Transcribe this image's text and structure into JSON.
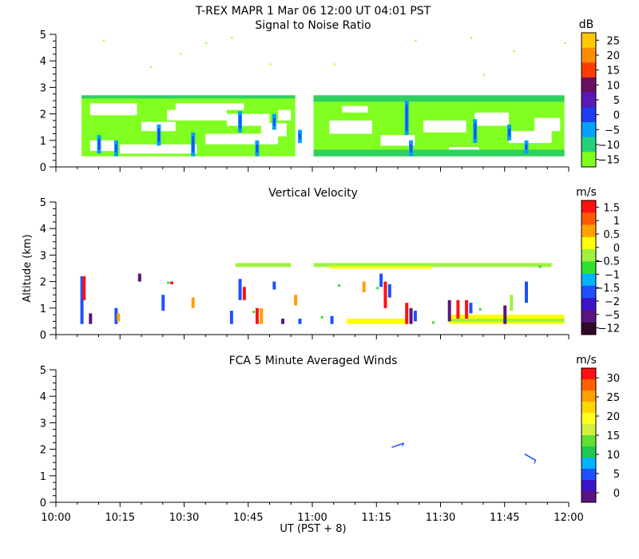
{
  "header": {
    "title": "T-REX   MAPR   1 Mar 06   12:00 UT   04:01   PST"
  },
  "x_axis": {
    "tick_labels": [
      "10:00",
      "10:15",
      "10:30",
      "10:45",
      "11:00",
      "11:15",
      "11:30",
      "11:45",
      "12:00"
    ],
    "xlabel": "UT  (PST + 8)",
    "xlim_minutes": [
      0,
      120
    ]
  },
  "chart_data": [
    {
      "type": "heatmap",
      "title": "Signal to Noise Ratio",
      "ylabel": "",
      "y_tick_labels": [
        "5",
        "4",
        "3",
        "2",
        "1",
        "0"
      ],
      "ylim_km": [
        0,
        5
      ],
      "colorbar": {
        "unit": "dB",
        "labels": [
          "25",
          "20",
          "15",
          "10",
          "5",
          "0",
          "−5",
          "−10",
          "−15"
        ],
        "colors": [
          "#ffc800",
          "#ff8c00",
          "#ff3c00",
          "#6a1060",
          "#5a18b4",
          "#1e3cf0",
          "#00a0ff",
          "#22d27a",
          "#80ff20"
        ]
      },
      "data_gap_minutes": [
        56,
        60
      ],
      "echo_layer_km": [
        0.4,
        2.7
      ]
    },
    {
      "type": "heatmap",
      "title": "Vertical Velocity",
      "ylabel": "Altitude  (km)",
      "y_tick_labels": [
        "5",
        "4",
        "3",
        "2",
        "1",
        "0"
      ],
      "ylim_km": [
        0,
        5
      ],
      "colorbar": {
        "unit": "m/s",
        "labels": [
          "1.5",
          "1",
          "0.5",
          "0",
          "−0.5",
          "−1",
          "−1.5",
          "−2",
          "−5",
          "−12"
        ],
        "colors": [
          "#ff1010",
          "#ff5a00",
          "#ffa000",
          "#ffff00",
          "#a0f040",
          "#30e030",
          "#00b4ff",
          "#1e50ff",
          "#3c14c8",
          "#5a1480",
          "#300828"
        ]
      },
      "data_gap_minutes": [
        56,
        60
      ]
    },
    {
      "type": "line",
      "title": "FCA 5 Minute Averaged Winds",
      "ylabel": "",
      "y_tick_labels": [
        "5",
        "4",
        "3",
        "2",
        "1",
        "0"
      ],
      "ylim_km": [
        0,
        5
      ],
      "colorbar": {
        "unit": "m/s",
        "labels": [
          "30",
          "25",
          "20",
          "15",
          "10",
          "5",
          "0"
        ],
        "colors": [
          "#ff1010",
          "#ff6000",
          "#ffa000",
          "#ffd800",
          "#ffff20",
          "#d0f040",
          "#60e030",
          "#20c850",
          "#00b4ff",
          "#1e50ff",
          "#3c14c8",
          "#5a1480"
        ]
      },
      "wind_barbs": [
        {
          "time_min": 80,
          "alt_km": 2.15,
          "speed_ms": 5,
          "dir_deg": 250
        },
        {
          "time_min": 111,
          "alt_km": 1.7,
          "speed_ms": 5,
          "dir_deg": 300
        }
      ]
    }
  ]
}
